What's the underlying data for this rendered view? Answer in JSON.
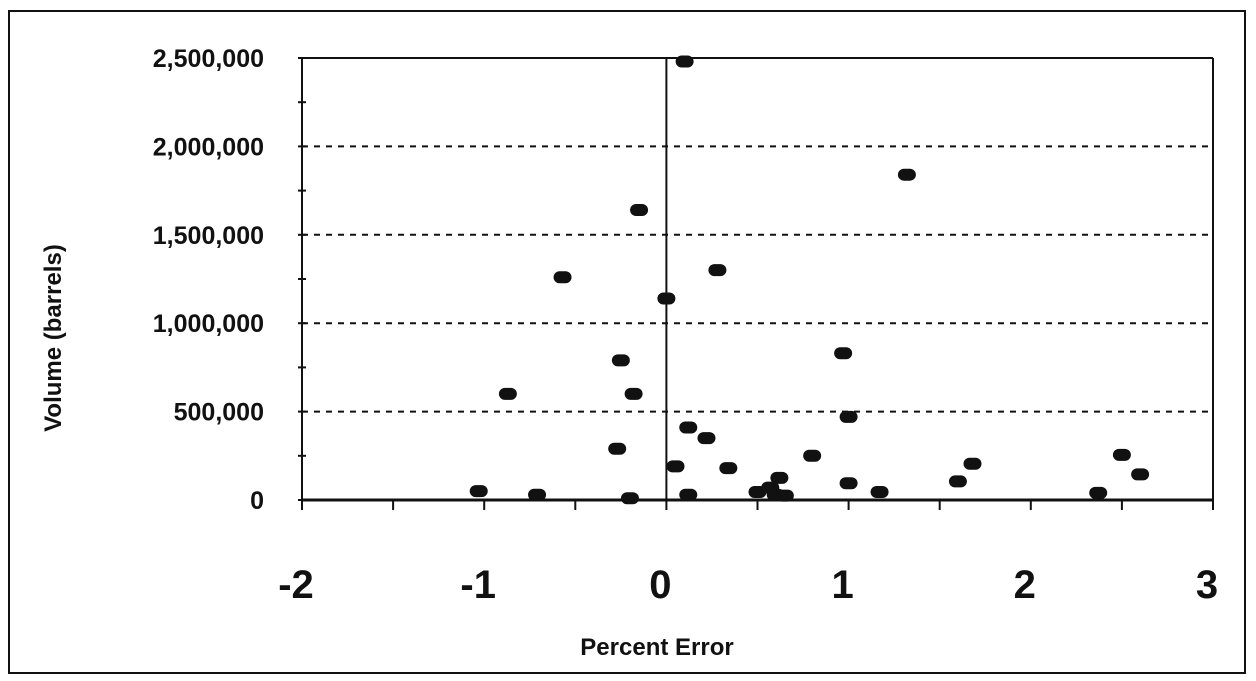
{
  "chart_data": {
    "type": "scatter",
    "xlabel": "Percent Error",
    "ylabel": "Volume (barrels)",
    "xlim": [
      -2,
      3
    ],
    "ylim": [
      0,
      2500000
    ],
    "x_ticks": [
      -2,
      -1,
      0,
      1,
      2,
      3
    ],
    "x_tick_labels": [
      "-2",
      "-1",
      "0",
      "1",
      "2",
      "3"
    ],
    "y_ticks": [
      0,
      500000,
      1000000,
      1500000,
      2000000,
      2500000
    ],
    "y_tick_labels": [
      "0",
      "500,000",
      "1,000,000",
      "1,500,000",
      "2,000,000",
      "2,500,000"
    ],
    "grid": "horizontal dashed",
    "marker_color": "#111111",
    "points": [
      {
        "x": 0.1,
        "y": 2480000
      },
      {
        "x": 1.32,
        "y": 1840000
      },
      {
        "x": -0.15,
        "y": 1640000
      },
      {
        "x": -0.57,
        "y": 1260000
      },
      {
        "x": 0.28,
        "y": 1300000
      },
      {
        "x": 0.0,
        "y": 1140000
      },
      {
        "x": 0.97,
        "y": 830000
      },
      {
        "x": -0.25,
        "y": 790000
      },
      {
        "x": -0.87,
        "y": 600000
      },
      {
        "x": -0.18,
        "y": 600000
      },
      {
        "x": 1.0,
        "y": 470000
      },
      {
        "x": 0.12,
        "y": 410000
      },
      {
        "x": 0.22,
        "y": 350000
      },
      {
        "x": -0.27,
        "y": 290000
      },
      {
        "x": 0.8,
        "y": 250000
      },
      {
        "x": 2.5,
        "y": 255000
      },
      {
        "x": 0.05,
        "y": 190000
      },
      {
        "x": 0.34,
        "y": 180000
      },
      {
        "x": 1.68,
        "y": 205000
      },
      {
        "x": 2.6,
        "y": 145000
      },
      {
        "x": 0.62,
        "y": 125000
      },
      {
        "x": 1.6,
        "y": 105000
      },
      {
        "x": 1.0,
        "y": 95000
      },
      {
        "x": 0.57,
        "y": 70000
      },
      {
        "x": -1.03,
        "y": 50000
      },
      {
        "x": 0.5,
        "y": 45000
      },
      {
        "x": 1.17,
        "y": 45000
      },
      {
        "x": 2.37,
        "y": 40000
      },
      {
        "x": -0.71,
        "y": 30000
      },
      {
        "x": 0.12,
        "y": 30000
      },
      {
        "x": 0.6,
        "y": 30000
      },
      {
        "x": 0.65,
        "y": 25000
      },
      {
        "x": -0.2,
        "y": 10000
      }
    ]
  }
}
